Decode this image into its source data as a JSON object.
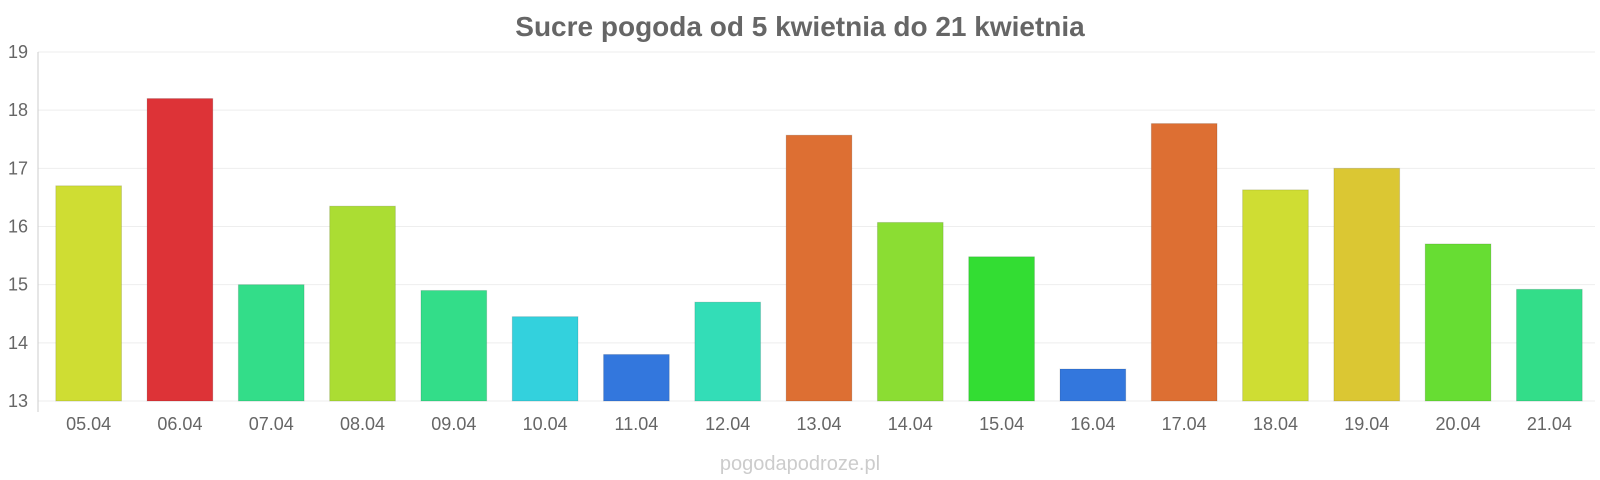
{
  "chart_data": {
    "type": "bar",
    "title": "Sucre pogoda od 5 kwietnia do 21 kwietnia",
    "xlabel": "",
    "ylabel": "",
    "ylim": [
      13,
      19
    ],
    "yticks": [
      "13",
      "14",
      "15",
      "16",
      "17",
      "18",
      "19"
    ],
    "categories": [
      "05.04",
      "06.04",
      "07.04",
      "08.04",
      "09.04",
      "10.04",
      "11.04",
      "12.04",
      "13.04",
      "14.04",
      "15.04",
      "16.04",
      "17.04",
      "18.04",
      "19.04",
      "20.04",
      "21.04"
    ],
    "values": [
      16.7,
      18.2,
      15.0,
      16.35,
      14.9,
      14.45,
      13.8,
      14.7,
      17.57,
      16.07,
      15.48,
      13.55,
      17.77,
      16.63,
      17.0,
      15.7,
      14.92
    ],
    "colors": [
      "#cfdd33",
      "#dd3337",
      "#33dd89",
      "#abdd33",
      "#33dd89",
      "#33d1dd",
      "#3377dd",
      "#33ddb7",
      "#dd6f33",
      "#8bdd33",
      "#33dd33",
      "#3377dd",
      "#dd6f33",
      "#cfdd33",
      "#dbc733",
      "#67dd33",
      "#33dd89"
    ],
    "grid": true,
    "legend": "none"
  },
  "footer": {
    "watermark": "pogodapodroze.pl"
  }
}
